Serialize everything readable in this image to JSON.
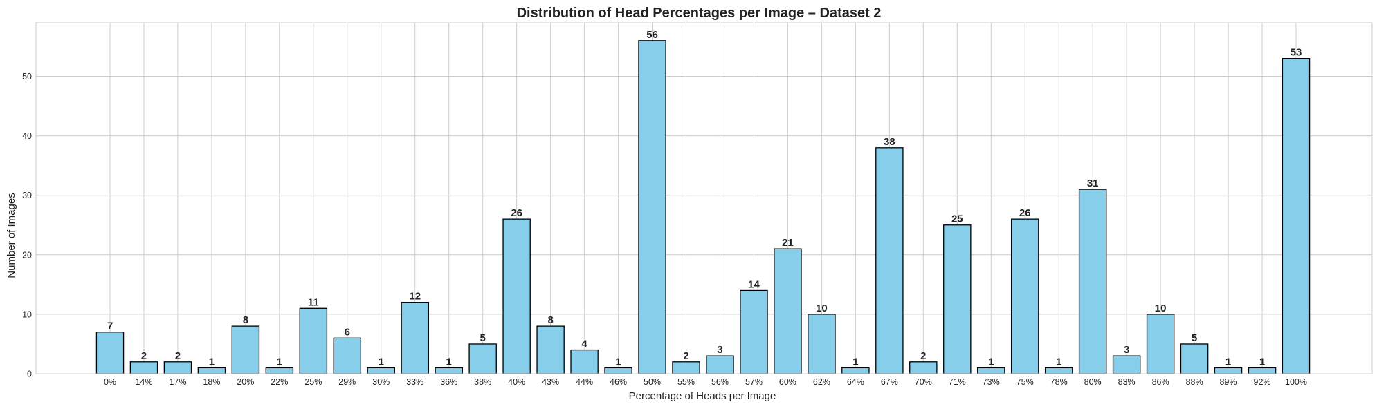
{
  "chart_data": {
    "type": "bar",
    "title": "Distribution of Head Percentages per Image – Dataset 2",
    "xlabel": "Percentage of Heads per Image",
    "ylabel": "Number of Images",
    "categories": [
      "0%",
      "14%",
      "17%",
      "18%",
      "20%",
      "22%",
      "25%",
      "29%",
      "30%",
      "33%",
      "36%",
      "38%",
      "40%",
      "43%",
      "44%",
      "46%",
      "50%",
      "55%",
      "56%",
      "57%",
      "60%",
      "62%",
      "64%",
      "67%",
      "70%",
      "71%",
      "73%",
      "75%",
      "78%",
      "80%",
      "83%",
      "86%",
      "88%",
      "89%",
      "92%",
      "100%"
    ],
    "values": [
      7,
      2,
      2,
      1,
      8,
      1,
      11,
      6,
      1,
      12,
      1,
      5,
      26,
      8,
      4,
      1,
      56,
      2,
      3,
      14,
      21,
      10,
      1,
      38,
      2,
      25,
      1,
      26,
      1,
      31,
      3,
      10,
      5,
      1,
      1,
      53
    ],
    "ylim": [
      0,
      59
    ],
    "yticks": [
      0,
      10,
      20,
      30,
      40,
      50
    ],
    "grid": true,
    "data_labels": true,
    "colors": {
      "bar_fill": "#87CEEB",
      "bar_edge": "#000000",
      "grid": "#cccccc"
    }
  }
}
